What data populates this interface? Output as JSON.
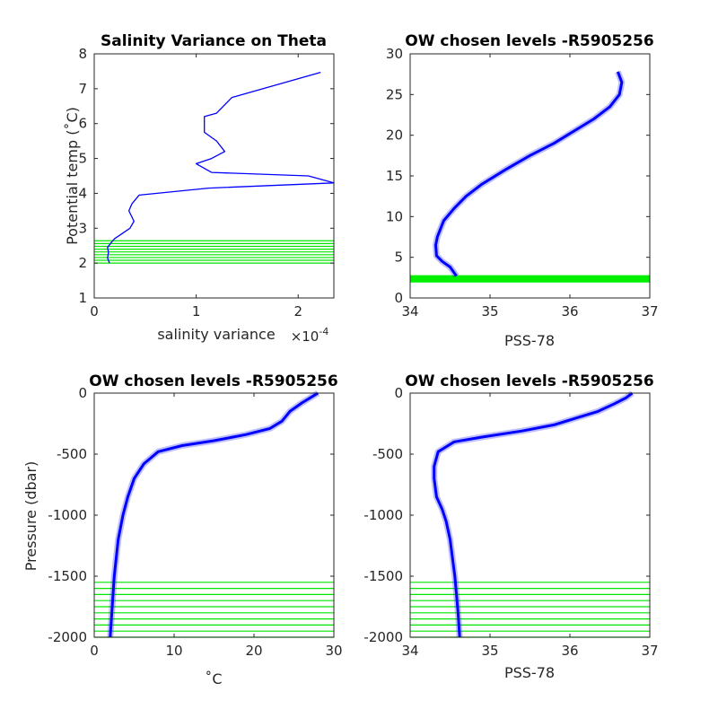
{
  "chart_data": [
    {
      "type": "line",
      "title": "Salinity Variance on Theta",
      "xlabel": "salinity variance",
      "x_multiplier": "×10-4",
      "ylabel": "Potential temp (˚C)",
      "xlim": [
        0,
        2.35
      ],
      "ylim": [
        1,
        8
      ],
      "xticks": [
        0,
        1,
        2
      ],
      "yticks": [
        1,
        2,
        3,
        4,
        5,
        6,
        7,
        8
      ],
      "series": [
        {
          "color": "#0000ff",
          "points": [
            [
              0.15,
              2.0
            ],
            [
              0.13,
              2.15
            ],
            [
              0.14,
              2.3
            ],
            [
              0.13,
              2.45
            ],
            [
              0.17,
              2.6
            ],
            [
              0.2,
              2.7
            ],
            [
              0.3,
              2.9
            ],
            [
              0.35,
              3.0
            ],
            [
              0.39,
              3.2
            ],
            [
              0.34,
              3.5
            ],
            [
              0.37,
              3.7
            ],
            [
              0.44,
              3.95
            ],
            [
              1.12,
              4.15
            ],
            [
              2.35,
              4.3
            ],
            [
              2.1,
              4.5
            ],
            [
              1.15,
              4.6
            ],
            [
              1.0,
              4.85
            ],
            [
              1.15,
              5.0
            ],
            [
              1.28,
              5.2
            ],
            [
              1.2,
              5.5
            ],
            [
              1.08,
              5.75
            ],
            [
              1.08,
              6.2
            ],
            [
              1.2,
              6.3
            ],
            [
              1.35,
              6.75
            ],
            [
              2.22,
              7.47
            ]
          ]
        }
      ],
      "chosen_levels": [
        2.0,
        2.08,
        2.16,
        2.24,
        2.32,
        2.4,
        2.48,
        2.56,
        2.64
      ]
    },
    {
      "type": "line",
      "title": "OW chosen levels -R5905256",
      "xlabel": "PSS-78",
      "ylabel": "",
      "xlim": [
        34,
        37
      ],
      "ylim": [
        0,
        30
      ],
      "xticks": [
        34,
        35,
        36,
        37
      ],
      "yticks": [
        0,
        5,
        10,
        15,
        20,
        25,
        30
      ],
      "series": [
        {
          "color": "#0000ff",
          "name": "",
          "points": [
            [
              34.58,
              2.7
            ],
            [
              34.5,
              3.8
            ],
            [
              34.4,
              4.5
            ],
            [
              34.33,
              5.2
            ],
            [
              34.32,
              6.5
            ],
            [
              34.34,
              7.5
            ],
            [
              34.38,
              8.5
            ],
            [
              34.42,
              9.5
            ],
            [
              34.55,
              11
            ],
            [
              34.7,
              12.5
            ],
            [
              34.9,
              14
            ],
            [
              35.2,
              15.8
            ],
            [
              35.5,
              17.5
            ],
            [
              35.8,
              19
            ],
            [
              36.05,
              20.5
            ],
            [
              36.3,
              22
            ],
            [
              36.5,
              23.5
            ],
            [
              36.62,
              25
            ],
            [
              36.65,
              26.5
            ],
            [
              36.6,
              27.8
            ]
          ]
        }
      ],
      "chosen_band": [
        1.9,
        2.8
      ]
    },
    {
      "type": "line",
      "title": "OW chosen levels -R5905256",
      "xlabel": "˚C",
      "ylabel": "Pressure (dbar)",
      "xlim": [
        0,
        30
      ],
      "ylim": [
        -2000,
        0
      ],
      "xticks": [
        0,
        10,
        20,
        30
      ],
      "yticks": [
        -2000,
        -1500,
        -1000,
        -500,
        0
      ],
      "series": [
        {
          "color": "#0000ff",
          "name": "",
          "points": [
            [
              2.0,
              -2000
            ],
            [
              2.2,
              -1800
            ],
            [
              2.5,
              -1500
            ],
            [
              3.0,
              -1200
            ],
            [
              3.6,
              -1000
            ],
            [
              4.2,
              -850
            ],
            [
              5.0,
              -700
            ],
            [
              6.2,
              -580
            ],
            [
              8.0,
              -480
            ],
            [
              11.0,
              -430
            ],
            [
              15.0,
              -390
            ],
            [
              19.0,
              -340
            ],
            [
              22.0,
              -290
            ],
            [
              23.5,
              -230
            ],
            [
              24.5,
              -150
            ],
            [
              26.0,
              -80
            ],
            [
              27.5,
              -20
            ],
            [
              28.0,
              0
            ]
          ]
        }
      ],
      "chosen_levels": [
        -1550,
        -1600,
        -1650,
        -1700,
        -1750,
        -1800,
        -1850,
        -1900,
        -1950,
        -2000
      ]
    },
    {
      "type": "line",
      "title": "OW chosen levels -R5905256",
      "xlabel": "PSS-78",
      "ylabel": "",
      "xlim": [
        34,
        37
      ],
      "ylim": [
        -2000,
        0
      ],
      "xticks": [
        34,
        35,
        36,
        37
      ],
      "yticks": [
        -2000,
        -1500,
        -1000,
        -500,
        0
      ],
      "series": [
        {
          "color": "#0000ff",
          "name": "",
          "points": [
            [
              34.62,
              -2000
            ],
            [
              34.6,
              -1800
            ],
            [
              34.56,
              -1500
            ],
            [
              34.5,
              -1200
            ],
            [
              34.45,
              -1050
            ],
            [
              34.4,
              -950
            ],
            [
              34.33,
              -850
            ],
            [
              34.3,
              -700
            ],
            [
              34.3,
              -600
            ],
            [
              34.35,
              -480
            ],
            [
              34.55,
              -400
            ],
            [
              34.9,
              -360
            ],
            [
              35.4,
              -310
            ],
            [
              35.8,
              -260
            ],
            [
              36.1,
              -200
            ],
            [
              36.35,
              -150
            ],
            [
              36.55,
              -90
            ],
            [
              36.7,
              -40
            ],
            [
              36.78,
              0
            ]
          ]
        }
      ],
      "chosen_levels": [
        -1550,
        -1600,
        -1650,
        -1700,
        -1750,
        -1800,
        -1850,
        -1900,
        -1950,
        -2000
      ]
    }
  ]
}
